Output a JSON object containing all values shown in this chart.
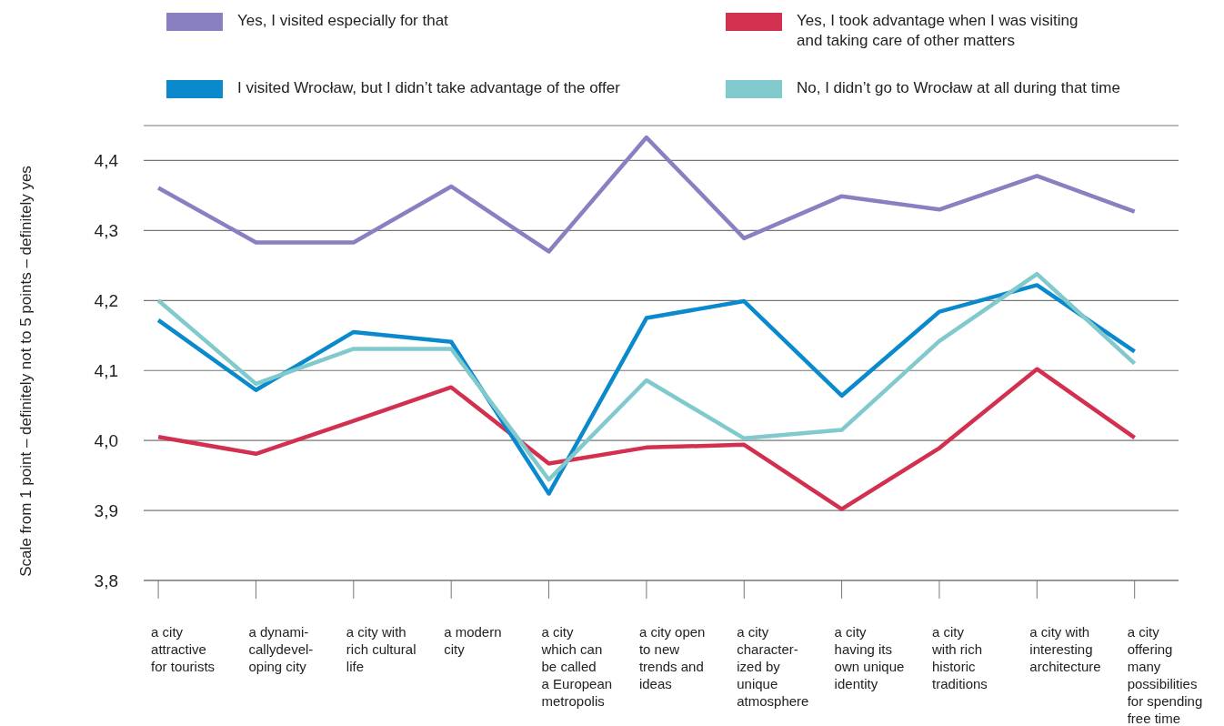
{
  "chart_data": {
    "type": "line",
    "ylabel": "Scale from 1 point – definitely not to 5 points – definitely yes",
    "categories": [
      "a city\nattractive\nfor tourists",
      "a dynami-\ncallydevel-\noping city",
      "a city with\nrich cultural\nlife",
      "a modern\ncity",
      "a city\nwhich can\nbe called\na European\nmetropolis",
      "a city open\nto new\ntrends and\nideas",
      "a city\ncharacter-\nized by\nunique\natmosphere",
      "a city\nhaving its\nown unique\nidentity",
      "a city\nwith rich\nhistoric\ntraditions",
      "a city with\ninteresting\narchitecture",
      "a city\noffering\nmany\npossibilities\nfor spending\nfree time"
    ],
    "series": [
      {
        "name": "Yes, I visited especially for that",
        "color": "#8880c0",
        "values": [
          4.361,
          4.283,
          4.283,
          4.363,
          4.27,
          4.433,
          4.289,
          4.349,
          4.33,
          4.378,
          4.327
        ]
      },
      {
        "name": "Yes, I took advantage when I was visiting\nand taking care of other matters",
        "color": "#d3304f",
        "values": [
          4.005,
          3.981,
          4.028,
          4.076,
          3.967,
          3.99,
          3.994,
          3.902,
          3.989,
          4.102,
          4.004
        ]
      },
      {
        "name": "I visited Wrocław, but I didn’t take advantage of the offer",
        "color": "#0a8acd",
        "values": [
          4.172,
          4.072,
          4.155,
          4.141,
          3.924,
          4.175,
          4.199,
          4.064,
          4.184,
          4.222,
          4.127
        ]
      },
      {
        "name": "No, I didn’t go to Wrocław at all during that time",
        "color": "#80c9cc",
        "values": [
          4.2,
          4.081,
          4.131,
          4.131,
          3.944,
          4.086,
          4.003,
          4.015,
          4.142,
          4.238,
          4.11
        ]
      }
    ],
    "ylim": [
      3.8,
      4.45
    ],
    "yticks": [
      {
        "value": 3.8,
        "label": "3,8"
      },
      {
        "value": 3.9,
        "label": "3,9"
      },
      {
        "value": 4.0,
        "label": "4,0"
      },
      {
        "value": 4.1,
        "label": "4,1"
      },
      {
        "value": 4.2,
        "label": "4,2"
      },
      {
        "value": 4.3,
        "label": "4,3"
      },
      {
        "value": 4.4,
        "label": "4,4"
      }
    ],
    "grid": "y",
    "legend": "top"
  }
}
